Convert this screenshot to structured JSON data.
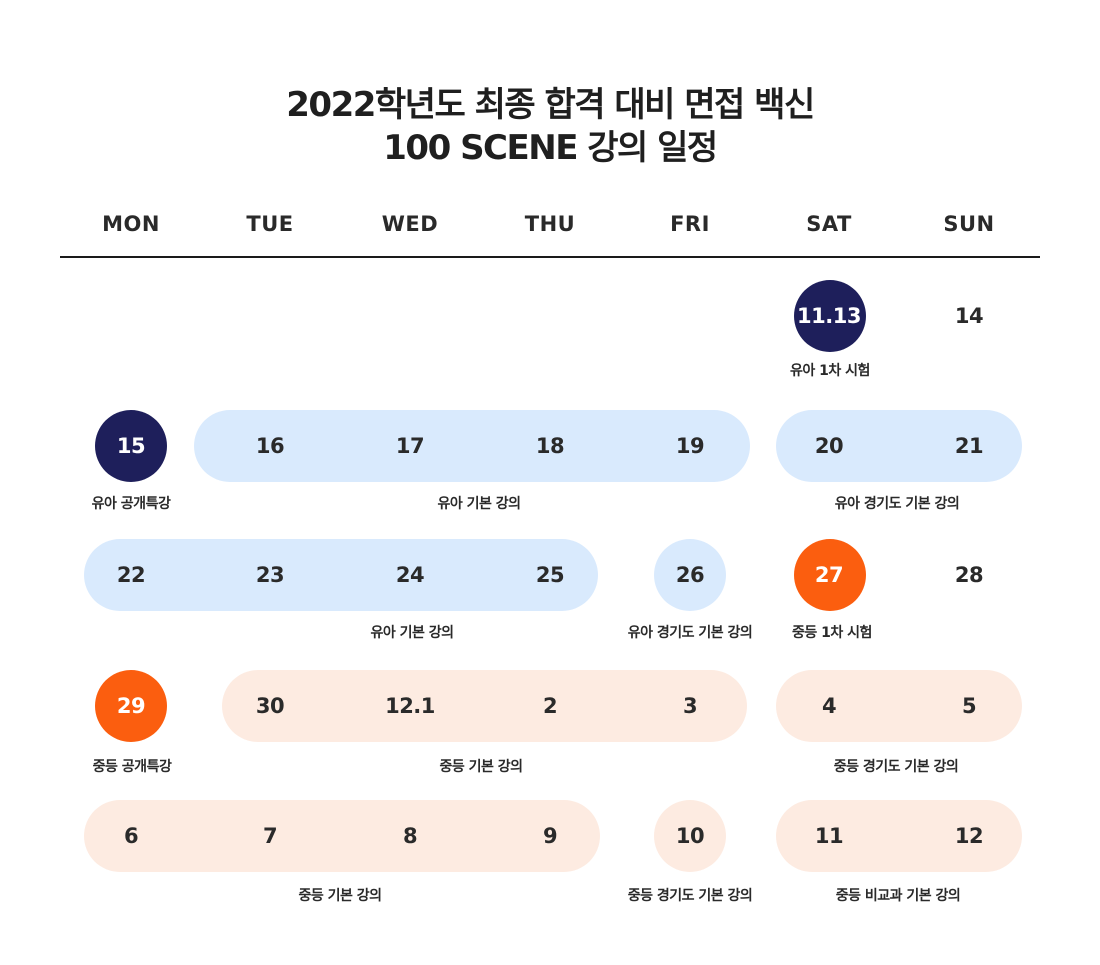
{
  "title": {
    "line1": "2022학년도 최종 합격 대비 면접 백신",
    "line2": "100 SCENE 강의 일정"
  },
  "weekdays": [
    "MON",
    "TUE",
    "WED",
    "THU",
    "FRI",
    "SAT",
    "SUN"
  ],
  "colors": {
    "navy": "#1e1f5b",
    "orange": "#fb5e0f",
    "light_blue": "#d9eafd",
    "peach": "#fdebe1",
    "text": "#222222"
  },
  "weeks": [
    {
      "days": [
        "",
        "",
        "",
        "",
        "",
        "11.13",
        "14"
      ],
      "labels": {
        "sat": "유아 1차 시험"
      }
    },
    {
      "days": [
        "15",
        "16",
        "17",
        "18",
        "19",
        "20",
        "21"
      ],
      "labels": {
        "mon": "유아 공개특강",
        "tue_fri": "유아 기본 강의",
        "sat_sun": "유아 경기도 기본 강의"
      }
    },
    {
      "days": [
        "22",
        "23",
        "24",
        "25",
        "26",
        "27",
        "28"
      ],
      "labels": {
        "mon_thu": "유아 기본 강의",
        "fri": "유아 경기도 기본 강의",
        "sat": "중등 1차 시험"
      }
    },
    {
      "days": [
        "29",
        "30",
        "12.1",
        "2",
        "3",
        "4",
        "5"
      ],
      "labels": {
        "mon": "중등 공개특강",
        "tue_fri": "중등 기본 강의",
        "sat_sun": "중등 경기도 기본 강의"
      }
    },
    {
      "days": [
        "6",
        "7",
        "8",
        "9",
        "10",
        "11",
        "12"
      ],
      "labels": {
        "mon_thu": "중등 기본 강의",
        "fri": "중등 경기도 기본 강의",
        "sat_sun": "중등 비교과 기본 강의"
      }
    }
  ]
}
